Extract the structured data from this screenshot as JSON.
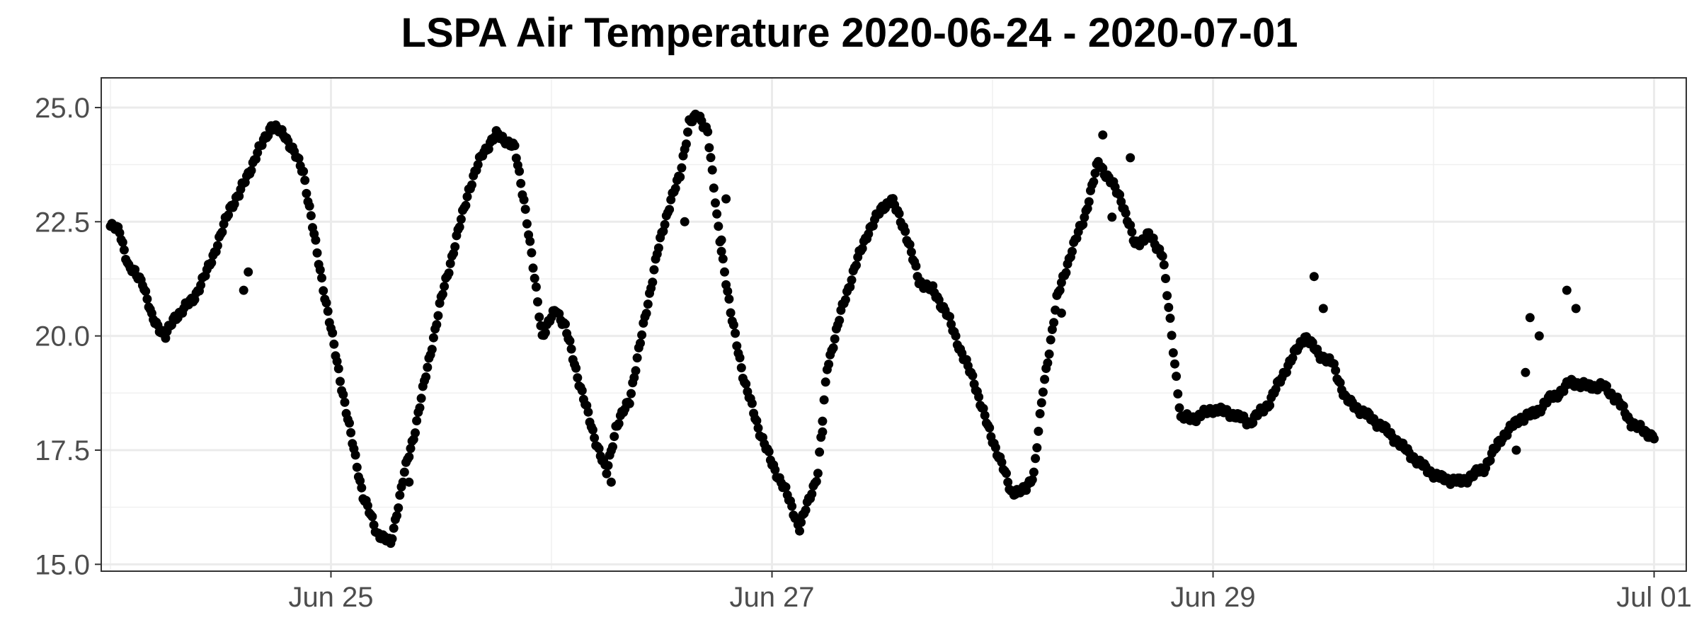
{
  "chart_data": {
    "type": "scatter",
    "title": "LSPA Air Temperature 2020-06-24 - 2020-07-01",
    "xlabel": "",
    "ylabel": "",
    "x_unit": "date",
    "xlim": [
      "2020-06-23 23:00",
      "2020-07-01 03:30"
    ],
    "ylim": [
      14.85,
      25.65
    ],
    "y_ticks": [
      15.0,
      17.5,
      20.0,
      22.5,
      25.0
    ],
    "y_tick_labels": [
      "15.0",
      "17.5",
      "20.0",
      "22.5",
      "25.0"
    ],
    "x_ticks": [
      "2020-06-25",
      "2020-06-27",
      "2020-06-29",
      "2020-07-01"
    ],
    "x_tick_labels": [
      "Jun 25",
      "Jun 27",
      "Jun 29",
      "Jul 01"
    ],
    "x_minor_ticks": [
      "2020-06-24",
      "2020-06-26",
      "2020-06-28",
      "2020-06-30"
    ],
    "grid": true,
    "legend": "none",
    "point_color": "#000000",
    "anchors": [
      [
        "2020-06-24 00:00",
        22.4
      ],
      [
        "2020-06-24 01:00",
        22.3
      ],
      [
        "2020-06-24 02:00",
        21.5
      ],
      [
        "2020-06-24 03:30",
        21.2
      ],
      [
        "2020-06-24 04:30",
        20.4
      ],
      [
        "2020-06-24 06:00",
        20.0
      ],
      [
        "2020-06-24 07:00",
        20.4
      ],
      [
        "2020-06-24 09:00",
        20.8
      ],
      [
        "2020-06-24 10:30",
        21.4
      ],
      [
        "2020-06-24 12:00",
        22.2
      ],
      [
        "2020-06-24 13:00",
        22.8
      ],
      [
        "2020-06-24 14:00",
        23.1
      ],
      [
        "2020-06-24 16:00",
        24.0
      ],
      [
        "2020-06-24 17:30",
        24.6
      ],
      [
        "2020-06-24 19:00",
        24.4
      ],
      [
        "2020-06-24 21:00",
        23.6
      ],
      [
        "2020-06-24 22:30",
        21.8
      ],
      [
        "2020-06-25 00:30",
        19.6
      ],
      [
        "2020-06-25 02:00",
        18.0
      ],
      [
        "2020-06-25 03:30",
        16.5
      ],
      [
        "2020-06-25 05:00",
        15.7
      ],
      [
        "2020-06-25 06:30",
        15.45
      ],
      [
        "2020-06-25 08:00",
        17.0
      ],
      [
        "2020-06-25 09:00",
        17.8
      ],
      [
        "2020-06-25 10:30",
        19.3
      ],
      [
        "2020-06-25 12:00",
        20.8
      ],
      [
        "2020-06-25 13:30",
        22.0
      ],
      [
        "2020-06-25 15:00",
        23.2
      ],
      [
        "2020-06-25 16:30",
        24.0
      ],
      [
        "2020-06-25 18:00",
        24.4
      ],
      [
        "2020-06-25 19:00",
        24.3
      ],
      [
        "2020-06-25 20:00",
        24.1
      ],
      [
        "2020-06-25 21:00",
        23.0
      ],
      [
        "2020-06-25 22:00",
        21.5
      ],
      [
        "2020-06-25 23:00",
        20.0
      ],
      [
        "2020-06-26 00:30",
        20.6
      ],
      [
        "2020-06-26 01:30",
        20.2
      ],
      [
        "2020-06-26 03:00",
        19.0
      ],
      [
        "2020-06-26 04:30",
        17.9
      ],
      [
        "2020-06-26 06:00",
        17.0
      ],
      [
        "2020-06-26 07:00",
        18.0
      ],
      [
        "2020-06-26 08:30",
        18.6
      ],
      [
        "2020-06-26 10:00",
        20.2
      ],
      [
        "2020-06-26 11:30",
        21.8
      ],
      [
        "2020-06-26 13:00",
        23.0
      ],
      [
        "2020-06-26 14:00",
        23.5
      ],
      [
        "2020-06-26 15:00",
        24.7
      ],
      [
        "2020-06-26 16:00",
        24.8
      ],
      [
        "2020-06-26 17:00",
        24.5
      ],
      [
        "2020-06-26 18:00",
        22.6
      ],
      [
        "2020-06-26 19:30",
        20.5
      ],
      [
        "2020-06-26 21:00",
        19.0
      ],
      [
        "2020-06-26 22:30",
        18.0
      ],
      [
        "2020-06-27 00:00",
        17.2
      ],
      [
        "2020-06-27 01:30",
        16.6
      ],
      [
        "2020-06-27 03:00",
        15.8
      ],
      [
        "2020-06-27 04:00",
        16.4
      ],
      [
        "2020-06-27 05:00",
        17.0
      ],
      [
        "2020-06-27 06:00",
        19.3
      ],
      [
        "2020-06-27 07:30",
        20.5
      ],
      [
        "2020-06-27 09:00",
        21.5
      ],
      [
        "2020-06-27 10:30",
        22.3
      ],
      [
        "2020-06-27 12:00",
        22.8
      ],
      [
        "2020-06-27 13:00",
        23.0
      ],
      [
        "2020-06-27 14:30",
        22.3
      ],
      [
        "2020-06-27 16:00",
        21.2
      ],
      [
        "2020-06-27 17:30",
        21.0
      ],
      [
        "2020-06-27 19:00",
        20.5
      ],
      [
        "2020-06-27 20:30",
        19.7
      ],
      [
        "2020-06-27 22:00",
        19.0
      ],
      [
        "2020-06-27 23:30",
        18.0
      ],
      [
        "2020-06-28 01:00",
        17.2
      ],
      [
        "2020-06-28 02:00",
        16.6
      ],
      [
        "2020-06-28 03:30",
        16.6
      ],
      [
        "2020-06-28 04:30",
        17.0
      ],
      [
        "2020-06-28 05:30",
        18.8
      ],
      [
        "2020-06-28 07:00",
        20.8
      ],
      [
        "2020-06-28 08:30",
        21.8
      ],
      [
        "2020-06-28 10:00",
        22.6
      ],
      [
        "2020-06-28 11:30",
        23.8
      ],
      [
        "2020-06-28 12:30",
        23.5
      ],
      [
        "2020-06-28 14:00",
        23.0
      ],
      [
        "2020-06-28 15:30",
        22.0
      ],
      [
        "2020-06-28 17:00",
        22.2
      ],
      [
        "2020-06-28 18:30",
        21.8
      ],
      [
        "2020-06-28 19:30",
        20.0
      ],
      [
        "2020-06-28 20:30",
        18.2
      ],
      [
        "2020-06-28 22:00",
        18.2
      ],
      [
        "2020-06-29 00:00",
        18.4
      ],
      [
        "2020-06-29 02:00",
        18.3
      ],
      [
        "2020-06-29 04:00",
        18.1
      ],
      [
        "2020-06-29 06:00",
        18.5
      ],
      [
        "2020-06-29 08:00",
        19.3
      ],
      [
        "2020-06-29 10:00",
        20.0
      ],
      [
        "2020-06-29 11:30",
        19.6
      ],
      [
        "2020-06-29 13:00",
        19.4
      ],
      [
        "2020-06-29 14:30",
        18.6
      ],
      [
        "2020-06-29 16:30",
        18.3
      ],
      [
        "2020-06-29 18:30",
        18.0
      ],
      [
        "2020-06-29 20:30",
        17.6
      ],
      [
        "2020-06-29 22:30",
        17.2
      ],
      [
        "2020-06-30 00:30",
        16.9
      ],
      [
        "2020-06-30 03:00",
        16.8
      ],
      [
        "2020-06-30 05:30",
        17.1
      ],
      [
        "2020-06-30 07:30",
        17.8
      ],
      [
        "2020-06-30 09:30",
        18.2
      ],
      [
        "2020-06-30 11:00",
        18.3
      ],
      [
        "2020-06-30 12:30",
        18.6
      ],
      [
        "2020-06-30 14:00",
        18.8
      ],
      [
        "2020-06-30 15:00",
        19.0
      ],
      [
        "2020-06-30 16:30",
        18.9
      ],
      [
        "2020-06-30 18:30",
        18.9
      ],
      [
        "2020-06-30 20:00",
        18.6
      ],
      [
        "2020-06-30 21:30",
        18.1
      ],
      [
        "2020-06-30 23:00",
        17.9
      ],
      [
        "2020-07-01 00:00",
        17.8
      ]
    ],
    "outliers": [
      [
        "2020-06-24 14:30",
        21.0
      ],
      [
        "2020-06-24 15:00",
        21.4
      ],
      [
        "2020-06-25 08:30",
        16.8
      ],
      [
        "2020-06-26 06:30",
        16.8
      ],
      [
        "2020-06-26 14:30",
        22.5
      ],
      [
        "2020-06-26 18:30",
        22.1
      ],
      [
        "2020-06-26 19:00",
        23.0
      ],
      [
        "2020-06-27 05:30",
        17.9
      ],
      [
        "2020-06-28 07:30",
        20.5
      ],
      [
        "2020-06-28 12:00",
        24.4
      ],
      [
        "2020-06-28 13:00",
        22.6
      ],
      [
        "2020-06-28 15:00",
        23.9
      ],
      [
        "2020-06-29 11:00",
        21.3
      ],
      [
        "2020-06-29 12:00",
        20.6
      ],
      [
        "2020-06-30 09:00",
        17.5
      ],
      [
        "2020-06-30 10:00",
        19.2
      ],
      [
        "2020-06-30 10:30",
        20.4
      ],
      [
        "2020-06-30 11:30",
        20.0
      ],
      [
        "2020-06-30 14:30",
        21.0
      ],
      [
        "2020-06-30 15:30",
        20.6
      ]
    ]
  }
}
